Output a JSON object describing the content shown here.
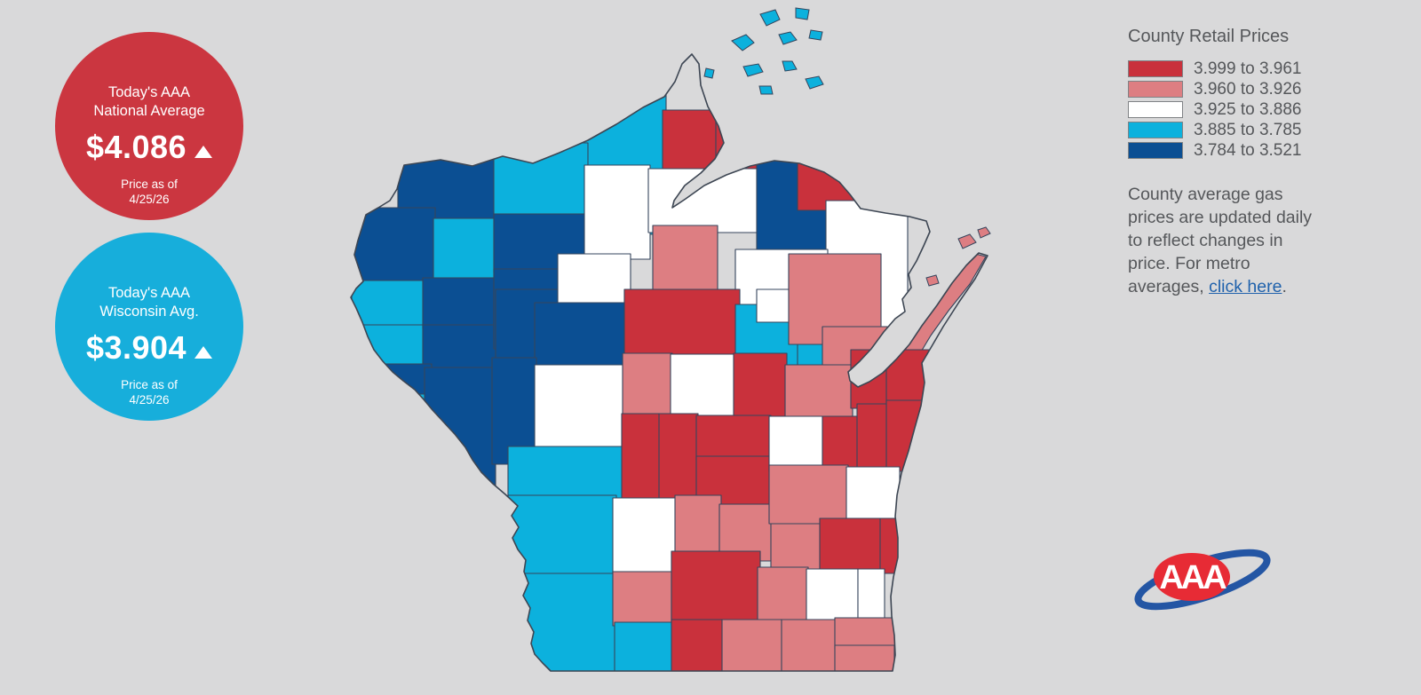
{
  "badges": {
    "national": {
      "title_line1": "Today's AAA",
      "title_line2": "National Average",
      "price": "$4.086",
      "trend": "up",
      "as_of_label": "Price as of",
      "as_of_date": "4/25/26",
      "color": "#cb3640"
    },
    "state": {
      "title_line1": "Today's AAA",
      "title_line2": "Wisconsin Avg.",
      "price": "$3.904",
      "trend": "up",
      "as_of_label": "Price as of",
      "as_of_date": "4/25/26",
      "color": "#17aedb"
    }
  },
  "legend": {
    "title": "County Retail Prices",
    "items": [
      {
        "label": "3.999 to 3.961",
        "color": "#c9313c"
      },
      {
        "label": "3.960 to 3.926",
        "color": "#dd7e82"
      },
      {
        "label": "3.925 to 3.886",
        "color": "#ffffff"
      },
      {
        "label": "3.885 to 3.785",
        "color": "#0cb1dd"
      },
      {
        "label": "3.784 to 3.521",
        "color": "#0b4f93"
      }
    ],
    "note_before": "County average gas prices are updated daily to reflect changes in price. For metro averages, ",
    "note_link": "click here",
    "note_after": "."
  },
  "logo": {
    "text": "AAA",
    "red": "#e72b35",
    "blue": "#2456a4"
  },
  "map": {
    "region": "Wisconsin",
    "counties": [
      {
        "id": "bayfield",
        "cat": 3
      },
      {
        "id": "ashland",
        "cat": 3
      },
      {
        "id": "douglas",
        "cat": 4
      },
      {
        "id": "burnett",
        "cat": 4
      },
      {
        "id": "sawyer",
        "cat": 3
      },
      {
        "id": "washburn",
        "cat": 3
      },
      {
        "id": "polk",
        "cat": 3
      },
      {
        "id": "stcroix",
        "cat": 3
      },
      {
        "id": "barron",
        "cat": 4
      },
      {
        "id": "dunn",
        "cat": 4
      },
      {
        "id": "pierce",
        "cat": 4
      },
      {
        "id": "pepin",
        "cat": 3
      },
      {
        "id": "rusk",
        "cat": 4
      },
      {
        "id": "chippewa",
        "cat": 4
      },
      {
        "id": "eauclaire",
        "cat": 4
      },
      {
        "id": "price",
        "cat": 2
      },
      {
        "id": "iron",
        "cat": 0
      },
      {
        "id": "vilas",
        "cat": 0
      },
      {
        "id": "oneida",
        "cat": 2
      },
      {
        "id": "lincoln",
        "cat": 1
      },
      {
        "id": "taylor",
        "cat": 2
      },
      {
        "id": "clark",
        "cat": 4
      },
      {
        "id": "buffalo",
        "cat": 4
      },
      {
        "id": "trempealeau",
        "cat": 4
      },
      {
        "id": "forest",
        "cat": 4
      },
      {
        "id": "florence",
        "cat": 0
      },
      {
        "id": "marinette",
        "cat": 2
      },
      {
        "id": "langlade",
        "cat": 2
      },
      {
        "id": "marathon",
        "cat": 0
      },
      {
        "id": "shawano",
        "cat": 3
      },
      {
        "id": "shawanoe",
        "cat": 3
      },
      {
        "id": "menominee",
        "cat": 2
      },
      {
        "id": "oconto",
        "cat": 1
      },
      {
        "id": "ocontos",
        "cat": 1
      },
      {
        "id": "door",
        "cat": 1
      },
      {
        "id": "jackson",
        "cat": 2
      },
      {
        "id": "wood",
        "cat": 1
      },
      {
        "id": "portage",
        "cat": 2
      },
      {
        "id": "waupaca",
        "cat": 0
      },
      {
        "id": "outagamie",
        "cat": 1
      },
      {
        "id": "brown",
        "cat": 0
      },
      {
        "id": "kewaunee",
        "cat": 0
      },
      {
        "id": "lacrosse",
        "cat": 3
      },
      {
        "id": "vernon",
        "cat": 3
      },
      {
        "id": "juneau",
        "cat": 0
      },
      {
        "id": "adams",
        "cat": 0
      },
      {
        "id": "marquette",
        "cat": 0
      },
      {
        "id": "greenlake",
        "cat": 0
      },
      {
        "id": "waushara",
        "cat": 2
      },
      {
        "id": "winnebago",
        "cat": 0
      },
      {
        "id": "calumet",
        "cat": 0
      },
      {
        "id": "manitowoc",
        "cat": 0
      },
      {
        "id": "richland",
        "cat": 2
      },
      {
        "id": "sauk",
        "cat": 1
      },
      {
        "id": "columbia",
        "cat": 1
      },
      {
        "id": "dodge",
        "cat": 1
      },
      {
        "id": "fonddulac",
        "cat": 1
      },
      {
        "id": "sheboygan",
        "cat": 2
      },
      {
        "id": "grant",
        "cat": 3
      },
      {
        "id": "iowa",
        "cat": 1
      },
      {
        "id": "lafayette",
        "cat": 3
      },
      {
        "id": "dane",
        "cat": 0
      },
      {
        "id": "jefferson",
        "cat": 1
      },
      {
        "id": "washington",
        "cat": 0
      },
      {
        "id": "ozaukee",
        "cat": 0
      },
      {
        "id": "waukesha",
        "cat": 2
      },
      {
        "id": "milwaukee",
        "cat": 2
      },
      {
        "id": "green",
        "cat": 0
      },
      {
        "id": "rock",
        "cat": 1
      },
      {
        "id": "walworth",
        "cat": 1
      },
      {
        "id": "racine",
        "cat": 1
      },
      {
        "id": "kenosha",
        "cat": 1
      }
    ],
    "apostle_islands_cat": 3,
    "door_islands_cat": 1
  }
}
